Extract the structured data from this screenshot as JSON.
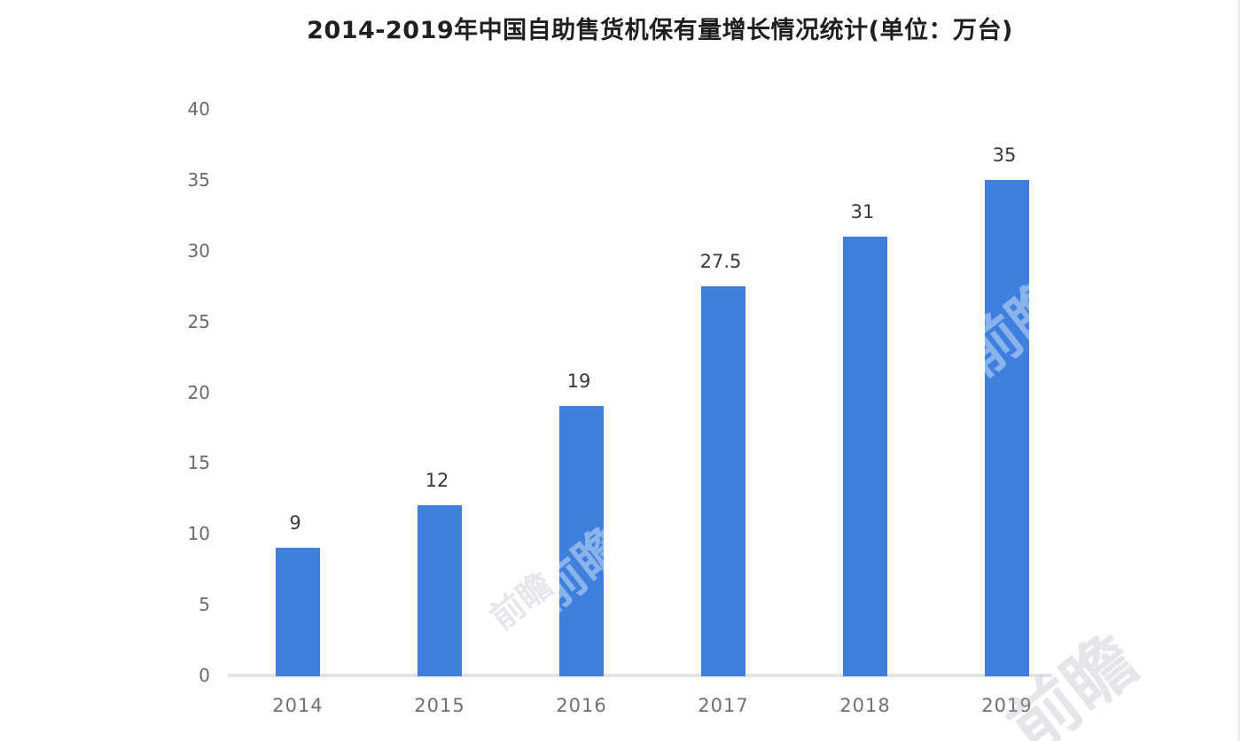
{
  "chart_data": {
    "type": "bar",
    "title": "2014-2019年中国自助售货机保有量增长情况统计(单位：万台)",
    "categories": [
      "2014",
      "2015",
      "2016",
      "2017",
      "2018",
      "2019"
    ],
    "values": [
      9,
      12,
      19,
      27.5,
      31,
      35
    ],
    "data_labels": [
      "9",
      "12",
      "19",
      "27.5",
      "31",
      "35"
    ],
    "xlabel": "",
    "ylabel": "",
    "ylim": [
      0,
      40
    ],
    "yticks": [
      0,
      5,
      10,
      15,
      20,
      25,
      30,
      35,
      40
    ],
    "grid": false,
    "legend": false,
    "bar_color": "#3f80de"
  },
  "colors": {
    "bar": "#3f80de",
    "axis_line": "#e3e3e3",
    "tick_label": "#6b6b6b",
    "data_label": "#383838",
    "title": "#1f1f1f"
  },
  "watermark": {
    "text": "前瞻"
  }
}
